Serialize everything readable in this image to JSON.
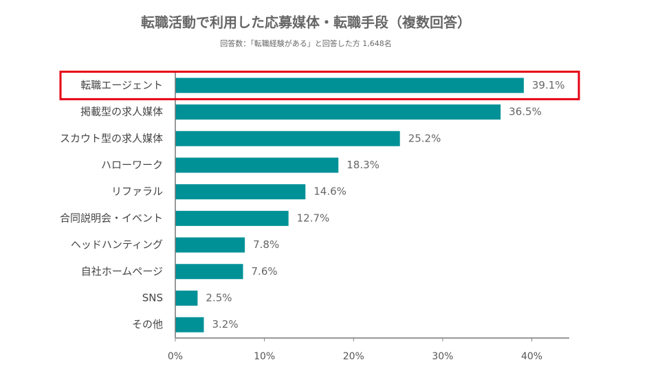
{
  "chart_data": {
    "type": "hbar",
    "title": "転職活動で利用した応募媒体・転職手段（複数回答）",
    "subtitle": "回答数：「転職経験がある」と回答した方 1,648名",
    "categories": [
      "転職エージェント",
      "掲載型の求人媒体",
      "スカウト型の求人媒体",
      "ハローワーク",
      "リファラル",
      "合同説明会・イベント",
      "ヘッドハンティング",
      "自社ホームページ",
      "SNS",
      "その他"
    ],
    "values": [
      39.1,
      36.5,
      25.2,
      18.3,
      14.6,
      12.7,
      7.8,
      7.6,
      2.5,
      3.2
    ],
    "value_labels": [
      "39.1%",
      "36.5%",
      "25.2%",
      "18.3%",
      "14.6%",
      "12.7%",
      "7.8%",
      "7.6%",
      "2.5%",
      "3.2%"
    ],
    "color": "#009197",
    "xlim": [
      0,
      44.2
    ],
    "xticks": [
      {
        "value": 0,
        "label": "0%"
      },
      {
        "value": 10,
        "label": "10%"
      },
      {
        "value": 20,
        "label": "20%"
      },
      {
        "value": 30,
        "label": "30%"
      },
      {
        "value": 40,
        "label": "40%"
      }
    ],
    "highlight": 0,
    "highlight_color": "#e60012"
  }
}
